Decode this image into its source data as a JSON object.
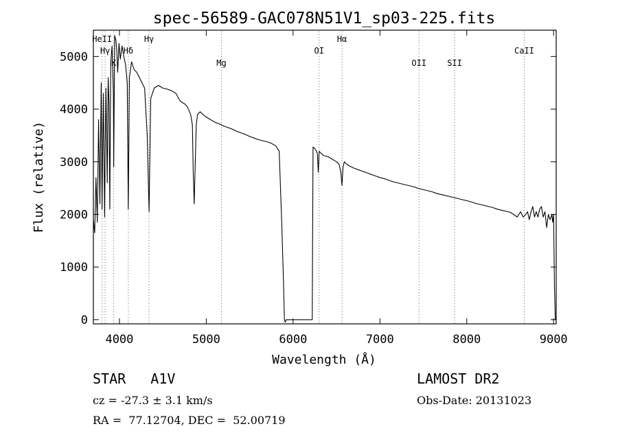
{
  "chart_data": {
    "type": "line",
    "title": "spec-56589-GAC078N51V1_sp03-225.fits",
    "xlabel": "Wavelength (Å)",
    "ylabel": "Flux (relative)",
    "xlim": [
      3700,
      9030
    ],
    "ylim": [
      -80,
      5500
    ],
    "xticks": [
      4000,
      5000,
      6000,
      7000,
      8000,
      9000
    ],
    "yticks": [
      0,
      1000,
      2000,
      3000,
      4000,
      5000
    ],
    "grid": false,
    "line_color": "#000000",
    "line_features": [
      {
        "name": "HeII",
        "x": 3800,
        "label": "HeII",
        "level": 0
      },
      {
        "name": "Hγ",
        "x": 3835,
        "label": "Hγ",
        "level": 1
      },
      {
        "name": "K",
        "x": 3934,
        "label": "K",
        "level": 2
      },
      {
        "name": "Hδ",
        "x": 4102,
        "label": "Hδ",
        "level": 1
      },
      {
        "name": "Hγ",
        "x": 4341,
        "label": "Hγ",
        "level": 0
      },
      {
        "name": "Mg",
        "x": 5175,
        "label": "Mg",
        "level": 2
      },
      {
        "name": "OI",
        "x": 6300,
        "label": "OI",
        "level": 1
      },
      {
        "name": "Hα",
        "x": 6563,
        "label": "Hα",
        "level": 0
      },
      {
        "name": "OII",
        "x": 7450,
        "label": "OII",
        "level": 2
      },
      {
        "name": "SII",
        "x": 7860,
        "label": "SII",
        "level": 2
      },
      {
        "name": "CaII",
        "x": 8662,
        "label": "CaII",
        "level": 1
      }
    ],
    "series": [
      {
        "x": [
          3700,
          3715,
          3730,
          3745,
          3760,
          3775,
          3790,
          3800,
          3815,
          3830,
          3835,
          3845,
          3860,
          3870,
          3880,
          3889,
          3900,
          3915,
          3930,
          3934,
          3945,
          3960,
          3970,
          3980,
          3995,
          4010,
          4030,
          4050,
          4070,
          4090,
          4102,
          4115,
          4140,
          4170,
          4200,
          4230,
          4260,
          4290,
          4320,
          4341,
          4360,
          4400,
          4450,
          4500,
          4550,
          4600,
          4650,
          4700,
          4750,
          4780,
          4820,
          4840,
          4850,
          4861,
          4872,
          4885,
          4900,
          4930,
          4960,
          5000,
          5050,
          5100,
          5150,
          5200,
          5250,
          5300,
          5350,
          5400,
          5450,
          5500,
          5550,
          5600,
          5650,
          5700,
          5750,
          5800,
          5840,
          5870,
          5890,
          5900,
          5910,
          5920,
          5930,
          6220,
          6230,
          6250,
          6270,
          6280,
          6290,
          6300,
          6310,
          6330,
          6350,
          6400,
          6450,
          6500,
          6530,
          6550,
          6563,
          6575,
          6590,
          6620,
          6650,
          6700,
          6750,
          6800,
          6850,
          6900,
          6950,
          7000,
          7050,
          7100,
          7150,
          7200,
          7250,
          7300,
          7350,
          7400,
          7450,
          7500,
          7550,
          7600,
          7650,
          7700,
          7750,
          7800,
          7850,
          7900,
          7950,
          8000,
          8050,
          8100,
          8150,
          8200,
          8250,
          8300,
          8350,
          8400,
          8450,
          8500,
          8540,
          8580,
          8620,
          8650,
          8680,
          8700,
          8720,
          8740,
          8760,
          8780,
          8800,
          8820,
          8840,
          8860,
          8880,
          8900,
          8920,
          8940,
          8960,
          8980,
          8990,
          9000,
          9010,
          9020,
          9030
        ],
        "y": [
          1900,
          1650,
          2700,
          1850,
          3800,
          2200,
          4500,
          2100,
          4300,
          1950,
          3100,
          4400,
          2600,
          4600,
          4100,
          2100,
          4900,
          5200,
          4300,
          2900,
          5400,
          5300,
          5100,
          4700,
          5250,
          4950,
          5200,
          5000,
          4850,
          4500,
          2100,
          4600,
          4900,
          4750,
          4700,
          4600,
          4500,
          4400,
          3500,
          2050,
          4200,
          4400,
          4450,
          4400,
          4380,
          4350,
          4300,
          4150,
          4100,
          4050,
          3900,
          3700,
          2800,
          2200,
          2900,
          3700,
          3900,
          3950,
          3900,
          3850,
          3800,
          3750,
          3720,
          3680,
          3650,
          3620,
          3580,
          3550,
          3520,
          3480,
          3450,
          3420,
          3400,
          3380,
          3350,
          3300,
          3200,
          1800,
          700,
          0,
          -50,
          0,
          0,
          0,
          3280,
          3250,
          3200,
          3150,
          2800,
          3200,
          3180,
          3150,
          3120,
          3100,
          3050,
          3000,
          2950,
          2800,
          2550,
          2900,
          3000,
          2950,
          2920,
          2880,
          2850,
          2820,
          2790,
          2760,
          2730,
          2700,
          2680,
          2650,
          2620,
          2600,
          2580,
          2560,
          2540,
          2520,
          2490,
          2470,
          2450,
          2430,
          2400,
          2380,
          2360,
          2340,
          2320,
          2300,
          2280,
          2260,
          2240,
          2210,
          2190,
          2170,
          2150,
          2130,
          2100,
          2080,
          2060,
          2040,
          2000,
          1950,
          2050,
          1950,
          2000,
          2050,
          1900,
          2050,
          2150,
          1950,
          2050,
          1950,
          2100,
          2150,
          1950,
          2050,
          1750,
          2000,
          1900,
          2000,
          1850,
          2000,
          600,
          0,
          0
        ]
      }
    ]
  },
  "info": {
    "line1_left": "STAR   A1V",
    "line1_right": "LAMOST DR2",
    "line2_left": "cz = -27.3 ± 3.1 km/s",
    "line2_right": "Obs-Date: 20131023",
    "line3_left": "RA =  77.12704, DEC =  52.00719"
  }
}
